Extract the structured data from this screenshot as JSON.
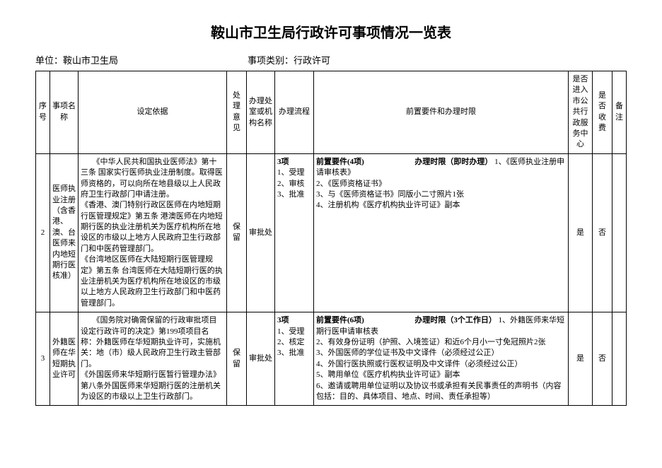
{
  "title": "鞍山市卫生局行政许可事项情况一览表",
  "unit_label": "单位：",
  "unit_value": "鞍山市卫生局",
  "category_label": "事项类别：",
  "category_value": "行政许可",
  "headers": {
    "seq": "序号",
    "name": "事项名称",
    "basis": "设定依据",
    "opinion": "处理意见",
    "office": "办理处室或机构名称",
    "process": "办理流程",
    "requirements": "前置要件和办理时限",
    "center": "是否进入市公共行政服务中心",
    "fee": "是否收费",
    "note": "备注"
  },
  "rows": [
    {
      "seq": "2",
      "name": "医师执业注册（含香港、澳、台医师来内地短期行医核准）",
      "basis": "《中华人民共和国执业医师法》第十三条  国家实行医师执业注册制度。取得医师资格的，可以向所在地县级以上人民政府卫生行政部门申请注册。\n《香港、澳门特别行政区医师在内地短期行医管理规定》第五条  港澳医师在内地短期行医的执业注册机关为医疗机构所在地设区的市级以上地方人民政府卫生行政部门和中医药管理部门。\n《台湾地区医师在大陆短期行医管理规定》第五条  台湾医师在大陆短期行医的执业注册机关为医疗机构所在地设区的市级以上地方人民政府卫生行政部门和中医药管理部门。",
      "opinion": "保留",
      "office": "审批处",
      "process_title": "3项",
      "process_items": "1、受理\n2、审核\n3、批准",
      "req_header_left": "前置要件(4项)",
      "req_header_right": "办理时限（即时办理）",
      "req_items": "1、《医师执业注册申请审核表》\n2、《医师资格证书》\n3、与《医师资格证书》同版小二寸照片1张\n4、注册机构《医疗机构执业许可证》副本",
      "center": "是",
      "fee": "否",
      "note": ""
    },
    {
      "seq": "3",
      "name": "外籍医师在华短期执业许可",
      "basis": "《国务院对确需保留的行政审批项目设定行政许可的决定》第199项项目名称：外籍医师在华短期执业许可，实施机关：地（市）级人民政府卫生行政主管部门。\n《外国医师来华短期行医暂行管理办法》第八条外国医师来华短期行医的注册机关为设区的市级以上卫生行政部门。",
      "opinion": "保留",
      "office": "审批处",
      "process_title": "3项",
      "process_items": "1、受理\n2、核定\n3、批准",
      "req_header_left": "前置要件(6项)",
      "req_header_right": "办理时限（3个工作日）",
      "req_items": "1、外籍医师来华短期行医申请审核表\n2、有效身份证明（护照、入境签证）和近6个月小一寸免冠照片2张\n3、外国医师的学位证书及中文译件（必须经过公正）\n4、外国行医执照或行医权证明及中文译件（必须经过公正）\n5、聘用单位《医疗机构执业许可证》副本\n6、邀请或聘用单位证明以及协议书或承担有关民事责任的声明书（内容包括：目的、具体项目、地点、时间、责任承担等）",
      "center": "是",
      "fee": "否",
      "note": ""
    }
  ]
}
